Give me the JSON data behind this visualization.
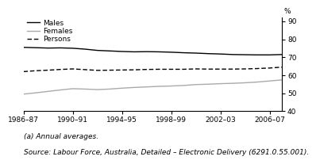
{
  "x_labels": [
    "1986–87",
    "1990–91",
    "1994–95",
    "1998–99",
    "2002–03",
    "2006–07"
  ],
  "x_positions": [
    1986,
    1990,
    1994,
    1998,
    2002,
    2006
  ],
  "x_min": 1986,
  "x_max": 2007,
  "y_min": 40,
  "y_max": 92,
  "y_ticks": [
    40,
    50,
    60,
    70,
    80,
    90
  ],
  "males": {
    "x": [
      1986,
      1987,
      1988,
      1989,
      1990,
      1991,
      1992,
      1993,
      1994,
      1995,
      1996,
      1997,
      1998,
      1999,
      2000,
      2001,
      2002,
      2003,
      2004,
      2005,
      2006,
      2007
    ],
    "y": [
      75.5,
      75.3,
      75.1,
      75.2,
      75.0,
      74.5,
      73.8,
      73.5,
      73.2,
      73.0,
      73.1,
      73.0,
      72.8,
      72.5,
      72.3,
      72.0,
      71.8,
      71.5,
      71.4,
      71.3,
      71.3,
      71.5
    ],
    "color": "#000000",
    "linestyle": "solid",
    "linewidth": 1.0,
    "label": "Males"
  },
  "females": {
    "x": [
      1986,
      1987,
      1988,
      1989,
      1990,
      1991,
      1992,
      1993,
      1994,
      1995,
      1996,
      1997,
      1998,
      1999,
      2000,
      2001,
      2002,
      2003,
      2004,
      2005,
      2006,
      2007
    ],
    "y": [
      49.5,
      50.2,
      51.0,
      51.8,
      52.5,
      52.3,
      52.0,
      52.3,
      52.8,
      53.2,
      53.5,
      53.8,
      54.0,
      54.3,
      54.8,
      55.0,
      55.3,
      55.5,
      55.8,
      56.2,
      56.8,
      57.4
    ],
    "color": "#aaaaaa",
    "linestyle": "solid",
    "linewidth": 1.0,
    "label": "Females"
  },
  "persons": {
    "x": [
      1986,
      1987,
      1988,
      1989,
      1990,
      1991,
      1992,
      1993,
      1994,
      1995,
      1996,
      1997,
      1998,
      1999,
      2000,
      2001,
      2002,
      2003,
      2004,
      2005,
      2006,
      2007
    ],
    "y": [
      62.0,
      62.5,
      62.8,
      63.2,
      63.5,
      63.1,
      62.7,
      62.8,
      62.9,
      63.0,
      63.2,
      63.3,
      63.3,
      63.3,
      63.5,
      63.4,
      63.4,
      63.4,
      63.5,
      63.7,
      64.0,
      64.5
    ],
    "color": "#000000",
    "linestyle": "dashed",
    "linewidth": 1.0,
    "label": "Persons"
  },
  "note": "(a) Annual averages.",
  "source": "Source: Labour Force, Australia, Detailed – Electronic Delivery (6291.0.55.001).",
  "legend_fontsize": 6.5,
  "tick_fontsize": 6.5,
  "note_fontsize": 6.5,
  "source_fontsize": 6.5
}
